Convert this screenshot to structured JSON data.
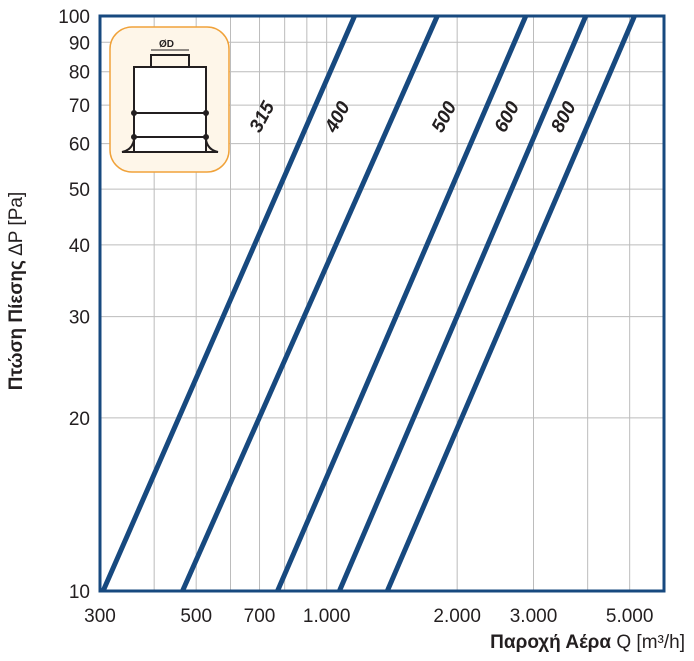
{
  "chart_data": {
    "type": "line",
    "title": "",
    "xlabel_bold": "Παροχή Αέρα",
    "xlabel_rest": " Q [m³/h]",
    "ylabel_bold": "Πτώση Πίεσης",
    "ylabel_rest": " ΔP [Pa]",
    "x_scale": "log",
    "y_scale": "log",
    "xlim": [
      300,
      6000
    ],
    "ylim": [
      10,
      100
    ],
    "x_ticks": [
      {
        "value": 300,
        "label": "300"
      },
      {
        "value": 500,
        "label": "500"
      },
      {
        "value": 700,
        "label": "700"
      },
      {
        "value": 1000,
        "label": "1.000"
      },
      {
        "value": 2000,
        "label": "2.000"
      },
      {
        "value": 3000,
        "label": "3.000"
      },
      {
        "value": 5000,
        "label": "5.000"
      }
    ],
    "y_ticks": [
      {
        "value": 10,
        "label": "10"
      },
      {
        "value": 20,
        "label": "20"
      },
      {
        "value": 30,
        "label": "30"
      },
      {
        "value": 40,
        "label": "40"
      },
      {
        "value": 50,
        "label": "50"
      },
      {
        "value": 60,
        "label": "60"
      },
      {
        "value": 70,
        "label": "70"
      },
      {
        "value": 80,
        "label": "80"
      },
      {
        "value": 90,
        "label": "90"
      },
      {
        "value": 100,
        "label": "100"
      }
    ],
    "x_minor_grid": [
      400,
      600,
      800,
      900,
      4000
    ],
    "grid": true,
    "series": [
      {
        "name": "315",
        "x": [
          305,
          1160
        ],
        "y": [
          10,
          100
        ]
      },
      {
        "name": "400",
        "x": [
          465,
          1800
        ],
        "y": [
          10,
          100
        ]
      },
      {
        "name": "500",
        "x": [
          770,
          2880
        ],
        "y": [
          10,
          100
        ]
      },
      {
        "name": "600",
        "x": [
          1070,
          3960
        ],
        "y": [
          10,
          100
        ]
      },
      {
        "name": "800",
        "x": [
          1380,
          5130
        ],
        "y": [
          10,
          100
        ]
      }
    ],
    "series_label_positions": [
      {
        "name": "315",
        "x": 730,
        "y": 66
      },
      {
        "name": "400",
        "x": 1090,
        "y": 66
      },
      {
        "name": "500",
        "x": 1920,
        "y": 66
      },
      {
        "name": "600",
        "x": 2680,
        "y": 66
      },
      {
        "name": "800",
        "x": 3620,
        "y": 66
      }
    ],
    "inset_label": "ØD",
    "colors": {
      "line": "#17497f",
      "frame": "#17497f",
      "grid": "#bcbcbc",
      "inset_bg": "#fef6e9",
      "inset_border": "#f0a23a",
      "text": "#231f20"
    }
  }
}
